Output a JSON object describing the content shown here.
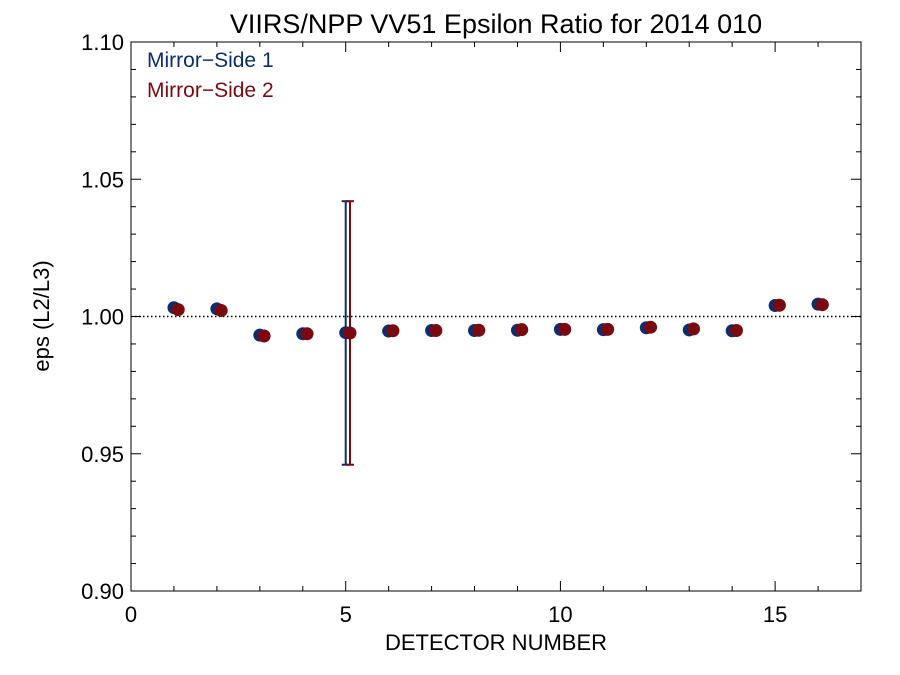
{
  "chart_data": {
    "type": "scatter",
    "title": "VIIRS/NPP VV51 Epsilon Ratio for 2014 010",
    "xlabel": "DETECTOR NUMBER",
    "ylabel": "eps (L2/L3)",
    "xlim": [
      0,
      17
    ],
    "ylim": [
      0.9,
      1.1
    ],
    "x_ticks": [
      "0",
      "5",
      "10",
      "15"
    ],
    "y_ticks": [
      "0.90",
      "0.95",
      "1.00",
      "1.05",
      "1.10"
    ],
    "reference_line": 1.0,
    "legend_position": "top-left",
    "series": [
      {
        "name": "Mirror−Side 1",
        "color": "#0d2e6e",
        "x": [
          1,
          2,
          3,
          4,
          5,
          6,
          7,
          8,
          9,
          10,
          11,
          12,
          13,
          14,
          15,
          16
        ],
        "y": [
          1.0032,
          1.0028,
          0.9932,
          0.9937,
          0.9941,
          0.9947,
          0.9949,
          0.9949,
          0.995,
          0.9953,
          0.9952,
          0.9959,
          0.9951,
          0.9948,
          1.004,
          1.0045
        ],
        "error_bars": [
          {
            "x": 5,
            "low": 0.946,
            "high": 1.042
          }
        ]
      },
      {
        "name": "Mirror−Side 2",
        "color": "#7a0a10",
        "x": [
          1.1,
          2.1,
          3.1,
          4.1,
          5.1,
          6.1,
          7.1,
          8.1,
          9.1,
          10.1,
          11.1,
          12.1,
          13.1,
          14.1,
          15.1,
          16.1
        ],
        "y": [
          1.0025,
          1.0022,
          0.9929,
          0.9937,
          0.994,
          0.9948,
          0.9949,
          0.995,
          0.9952,
          0.9953,
          0.9953,
          0.9961,
          0.9955,
          0.9949,
          1.0041,
          1.0043
        ],
        "error_bars": [
          {
            "x": 5.1,
            "low": 0.946,
            "high": 1.042
          }
        ]
      }
    ]
  }
}
